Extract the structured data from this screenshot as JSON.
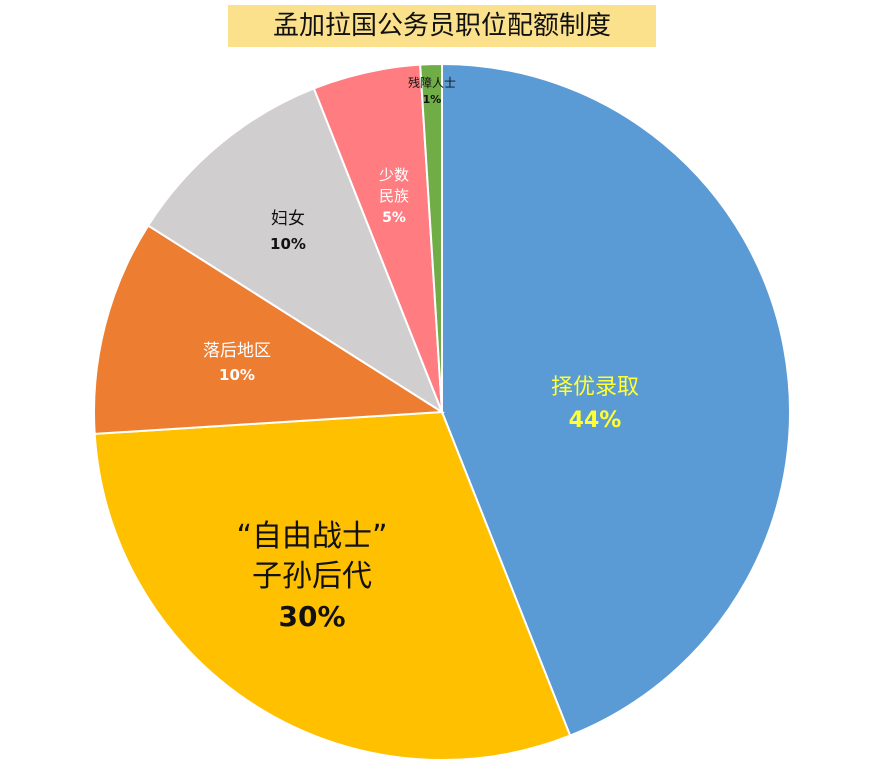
{
  "chart_data": {
    "type": "pie",
    "title": "孟加拉国公务员职位配额制度",
    "slices": [
      {
        "label_lines": [
          "择优录取"
        ],
        "percent_label": "44%",
        "value": 44,
        "color": "#5b9bd5",
        "text_color": "#ffff33"
      },
      {
        "label_lines": [
          "“自由战士”",
          "子孙后代"
        ],
        "percent_label": "30%",
        "value": 30,
        "color": "#ffc000",
        "text_color": "#111111"
      },
      {
        "label_lines": [
          "落后地区"
        ],
        "percent_label": "10%",
        "value": 10,
        "color": "#ed7d31",
        "text_color": "#ffffff"
      },
      {
        "label_lines": [
          "妇女"
        ],
        "percent_label": "10%",
        "value": 10,
        "color": "#d0cece",
        "text_color": "#111111"
      },
      {
        "label_lines": [
          "少数",
          "民族"
        ],
        "percent_label": "5%",
        "value": 5,
        "color": "#ff7c80",
        "text_color": "#ffffff"
      },
      {
        "label_lines": [
          "残障人士"
        ],
        "percent_label": "1%",
        "value": 1,
        "color": "#70ad47",
        "text_color": "#111111"
      }
    ]
  }
}
